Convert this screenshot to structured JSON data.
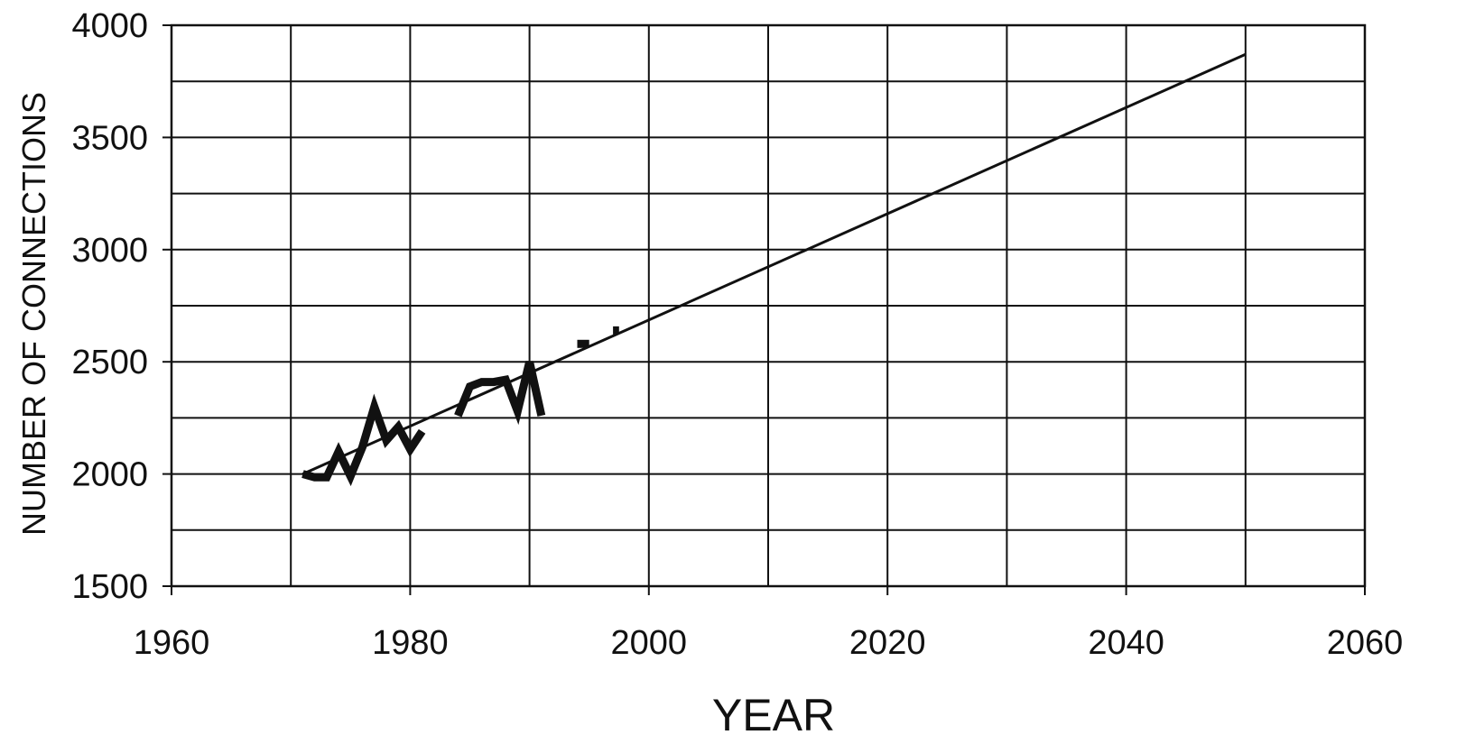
{
  "chart_data": {
    "type": "line",
    "title": "",
    "xlabel": "YEAR",
    "ylabel": "NUMBER OF CONNECTIONS",
    "xlim": [
      1960,
      2060
    ],
    "ylim": [
      1500,
      4000
    ],
    "x_ticks": [
      1960,
      1980,
      2000,
      2020,
      2040,
      2060
    ],
    "y_ticks": [
      1500,
      2000,
      2500,
      3000,
      3500,
      4000
    ],
    "x_minor_grid_step": 10,
    "y_minor_grid_step": 250,
    "grid": true,
    "legend": "none",
    "series": [
      {
        "segments": [
          [
            [
              1971,
              2000
            ],
            [
              1972,
              1985
            ],
            [
              1973,
              1985
            ],
            [
              1974,
              2100
            ],
            [
              1975,
              1990
            ],
            [
              1976,
              2120
            ],
            [
              1977,
              2300
            ],
            [
              1978,
              2150
            ],
            [
              1979,
              2210
            ],
            [
              1980,
              2110
            ],
            [
              1981,
              2190
            ]
          ],
          [
            [
              1984,
              2260
            ],
            [
              1985,
              2390
            ],
            [
              1986,
              2410
            ],
            [
              1987,
              2410
            ],
            [
              1988,
              2420
            ],
            [
              1989,
              2280
            ],
            [
              1990,
              2500
            ],
            [
              1991,
              2260
            ]
          ],
          [
            [
              1994,
              2580
            ],
            [
              1995,
              2580
            ]
          ],
          [
            [
              1997,
              2640
            ],
            [
              1997.5,
              2640
            ]
          ]
        ]
      },
      {
        "type": "trend",
        "x": [
          1971,
          2050
        ],
        "y": [
          2000,
          3870
        ]
      }
    ],
    "colors": {
      "line": "#111111",
      "background": "#ffffff"
    }
  }
}
